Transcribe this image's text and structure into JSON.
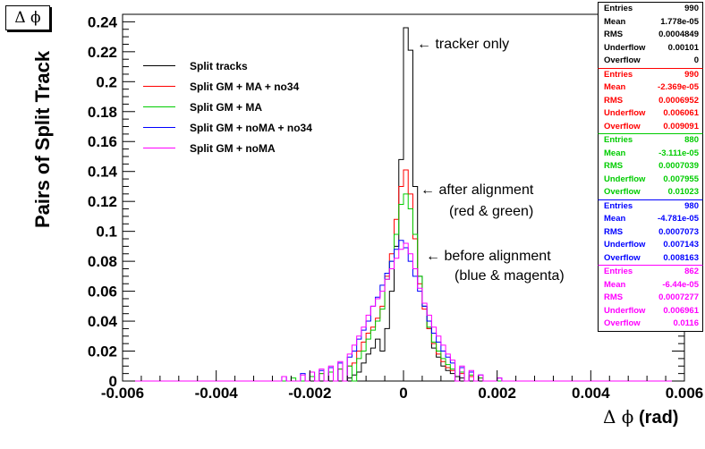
{
  "title": "Δ ϕ",
  "xlabel_symbol": "Δ ϕ",
  "xlabel_unit": "(rad)",
  "ylabel": "Pairs of Split Track",
  "annotations": {
    "tracker": "← tracker only",
    "after_1": "← after alignment",
    "after_2": "(red & green)",
    "before_1": "← before alignment",
    "before_2": "(blue & magenta)"
  },
  "stats_boxes": [
    {
      "color": "#000000",
      "rows": [
        [
          "Entries",
          "990"
        ],
        [
          "Mean",
          "1.778e-05"
        ],
        [
          "RMS",
          "0.0004849"
        ],
        [
          "Underflow",
          "0.00101"
        ],
        [
          "Overflow",
          "0"
        ]
      ]
    },
    {
      "color": "#ff0000",
      "rows": [
        [
          "Entries",
          "990"
        ],
        [
          "Mean",
          "-2.369e-05"
        ],
        [
          "RMS",
          "0.0006952"
        ],
        [
          "Underflow",
          "0.006061"
        ],
        [
          "Overflow",
          "0.009091"
        ]
      ]
    },
    {
      "color": "#00cc00",
      "rows": [
        [
          "Entries",
          "880"
        ],
        [
          "Mean",
          "-3.111e-05"
        ],
        [
          "RMS",
          "0.0007039"
        ],
        [
          "Underflow",
          "0.007955"
        ],
        [
          "Overflow",
          "0.01023"
        ]
      ]
    },
    {
      "color": "#0000ff",
      "rows": [
        [
          "Entries",
          "980"
        ],
        [
          "Mean",
          "-4.781e-05"
        ],
        [
          "RMS",
          "0.0007073"
        ],
        [
          "Underflow",
          "0.007143"
        ],
        [
          "Overflow",
          "0.008163"
        ]
      ]
    },
    {
      "color": "#ff00ff",
      "rows": [
        [
          "Entries",
          "862"
        ],
        [
          "Mean",
          "-6.44e-05"
        ],
        [
          "RMS",
          "0.0007277"
        ],
        [
          "Underflow",
          "0.006961"
        ],
        [
          "Overflow",
          "0.0116"
        ]
      ]
    }
  ],
  "chart_data": {
    "type": "histogram",
    "xlim": [
      -0.006,
      0.006
    ],
    "ylim": [
      0,
      0.245
    ],
    "xticks": [
      -0.006,
      -0.004,
      -0.002,
      0,
      0.002,
      0.004,
      0.006
    ],
    "xtick_labels": [
      "-0.006",
      "-0.004",
      "-0.002",
      "0",
      "0.002",
      "0.004",
      "0.006"
    ],
    "yticks": [
      0,
      0.02,
      0.04,
      0.06,
      0.08,
      0.1,
      0.12,
      0.14,
      0.16,
      0.18,
      0.2,
      0.22,
      0.24
    ],
    "ytick_labels": [
      "0",
      "0.02",
      "0.04",
      "0.06",
      "0.08",
      "0.1",
      "0.12",
      "0.14",
      "0.16",
      "0.18",
      "0.2",
      "0.22",
      "0.24"
    ],
    "bin_width": 0.0001,
    "legend_position": "top-left",
    "series": [
      {
        "name": "Split tracks",
        "color": "#000000",
        "bins": [
          [
            -0.0012,
            0.002
          ],
          [
            -0.0011,
            0.004
          ],
          [
            -0.001,
            0.006
          ],
          [
            -0.0009,
            0.012
          ],
          [
            -0.0008,
            0.018
          ],
          [
            -0.0007,
            0.022
          ],
          [
            -0.0006,
            0.028
          ],
          [
            -0.0005,
            0.02
          ],
          [
            -0.0004,
            0.035
          ],
          [
            -0.0003,
            0.06
          ],
          [
            -0.0002,
            0.09
          ],
          [
            -0.0001,
            0.148
          ],
          [
            0.0,
            0.236
          ],
          [
            0.0001,
            0.221
          ],
          [
            0.0002,
            0.13
          ],
          [
            0.0003,
            0.07
          ],
          [
            0.0004,
            0.05
          ],
          [
            0.0005,
            0.035
          ],
          [
            0.0006,
            0.022
          ],
          [
            0.0007,
            0.016
          ],
          [
            0.0008,
            0.01
          ],
          [
            0.0009,
            0.007
          ],
          [
            0.001,
            0.005
          ],
          [
            0.0011,
            0.003
          ],
          [
            0.0012,
            0.002
          ]
        ]
      },
      {
        "name": "Split GM + MA + no34",
        "color": "#ff0000",
        "bins": [
          [
            -0.002,
            0.003
          ],
          [
            -0.0018,
            0.005
          ],
          [
            -0.0016,
            0.006
          ],
          [
            -0.0014,
            0.008
          ],
          [
            -0.0012,
            0.01
          ],
          [
            -0.0011,
            0.012
          ],
          [
            -0.001,
            0.02
          ],
          [
            -0.0009,
            0.026
          ],
          [
            -0.0008,
            0.032
          ],
          [
            -0.0007,
            0.036
          ],
          [
            -0.0006,
            0.042
          ],
          [
            -0.0005,
            0.05
          ],
          [
            -0.0004,
            0.07
          ],
          [
            -0.0003,
            0.085
          ],
          [
            -0.0002,
            0.108
          ],
          [
            -0.0001,
            0.13
          ],
          [
            0.0,
            0.141
          ],
          [
            0.0001,
            0.125
          ],
          [
            0.0002,
            0.095
          ],
          [
            0.0003,
            0.065
          ],
          [
            0.0004,
            0.048
          ],
          [
            0.0005,
            0.035
          ],
          [
            0.0006,
            0.025
          ],
          [
            0.0007,
            0.018
          ],
          [
            0.0008,
            0.013
          ],
          [
            0.0009,
            0.009
          ],
          [
            0.001,
            0.007
          ],
          [
            0.0012,
            0.005
          ],
          [
            0.0014,
            0.003
          ],
          [
            0.0016,
            0.002
          ]
        ]
      },
      {
        "name": "Split GM + MA",
        "color": "#00cc00",
        "bins": [
          [
            -0.0024,
            0.002
          ],
          [
            -0.002,
            0.003
          ],
          [
            -0.0018,
            0.005
          ],
          [
            -0.0016,
            0.006
          ],
          [
            -0.0014,
            0.008
          ],
          [
            -0.0012,
            0.01
          ],
          [
            -0.001,
            0.015
          ],
          [
            -0.0009,
            0.02
          ],
          [
            -0.0008,
            0.028
          ],
          [
            -0.0007,
            0.034
          ],
          [
            -0.0006,
            0.04
          ],
          [
            -0.0005,
            0.048
          ],
          [
            -0.0004,
            0.068
          ],
          [
            -0.0003,
            0.08
          ],
          [
            -0.0002,
            0.098
          ],
          [
            -0.0001,
            0.118
          ],
          [
            0.0,
            0.125
          ],
          [
            0.0001,
            0.115
          ],
          [
            0.0002,
            0.098
          ],
          [
            0.0003,
            0.07
          ],
          [
            0.0004,
            0.05
          ],
          [
            0.0005,
            0.036
          ],
          [
            0.0006,
            0.026
          ],
          [
            0.0007,
            0.02
          ],
          [
            0.0008,
            0.015
          ],
          [
            0.0009,
            0.011
          ],
          [
            0.001,
            0.008
          ],
          [
            0.0012,
            0.006
          ],
          [
            0.0014,
            0.004
          ],
          [
            0.0016,
            0.002
          ]
        ]
      },
      {
        "name": "Split GM + noMA + no34",
        "color": "#0000ff",
        "bins": [
          [
            -0.0026,
            0.003
          ],
          [
            -0.0022,
            0.005
          ],
          [
            -0.002,
            0.006
          ],
          [
            -0.0018,
            0.007
          ],
          [
            -0.0016,
            0.009
          ],
          [
            -0.0014,
            0.012
          ],
          [
            -0.0012,
            0.016
          ],
          [
            -0.0011,
            0.02
          ],
          [
            -0.001,
            0.028
          ],
          [
            -0.0009,
            0.034
          ],
          [
            -0.0008,
            0.04
          ],
          [
            -0.0007,
            0.05
          ],
          [
            -0.0006,
            0.056
          ],
          [
            -0.0005,
            0.064
          ],
          [
            -0.0004,
            0.072
          ],
          [
            -0.0003,
            0.08
          ],
          [
            -0.0002,
            0.088
          ],
          [
            -0.0001,
            0.094
          ],
          [
            0.0,
            0.089
          ],
          [
            0.0001,
            0.08
          ],
          [
            0.0002,
            0.07
          ],
          [
            0.0003,
            0.06
          ],
          [
            0.0004,
            0.05
          ],
          [
            0.0005,
            0.04
          ],
          [
            0.0006,
            0.032
          ],
          [
            0.0007,
            0.026
          ],
          [
            0.0008,
            0.02
          ],
          [
            0.0009,
            0.016
          ],
          [
            0.001,
            0.012
          ],
          [
            0.0012,
            0.009
          ],
          [
            0.0014,
            0.006
          ],
          [
            0.0016,
            0.004
          ],
          [
            0.002,
            0.002
          ]
        ]
      },
      {
        "name": "Split GM + noMA",
        "color": "#ff00ff",
        "bins": [
          [
            -0.0026,
            0.003
          ],
          [
            -0.0022,
            0.004
          ],
          [
            -0.002,
            0.006
          ],
          [
            -0.0018,
            0.008
          ],
          [
            -0.0016,
            0.01
          ],
          [
            -0.0014,
            0.013
          ],
          [
            -0.0012,
            0.018
          ],
          [
            -0.0011,
            0.024
          ],
          [
            -0.001,
            0.03
          ],
          [
            -0.0009,
            0.036
          ],
          [
            -0.0008,
            0.044
          ],
          [
            -0.0007,
            0.05
          ],
          [
            -0.0006,
            0.055
          ],
          [
            -0.0005,
            0.06
          ],
          [
            -0.0004,
            0.068
          ],
          [
            -0.0003,
            0.075
          ],
          [
            -0.0002,
            0.082
          ],
          [
            -0.0001,
            0.088
          ],
          [
            0.0,
            0.092
          ],
          [
            0.0001,
            0.085
          ],
          [
            0.0002,
            0.075
          ],
          [
            0.0003,
            0.062
          ],
          [
            0.0004,
            0.052
          ],
          [
            0.0005,
            0.044
          ],
          [
            0.0006,
            0.036
          ],
          [
            0.0007,
            0.03
          ],
          [
            0.0008,
            0.024
          ],
          [
            0.0009,
            0.018
          ],
          [
            0.001,
            0.014
          ],
          [
            0.0012,
            0.01
          ],
          [
            0.0014,
            0.007
          ],
          [
            0.0016,
            0.004
          ],
          [
            0.002,
            0.002
          ]
        ]
      }
    ]
  }
}
